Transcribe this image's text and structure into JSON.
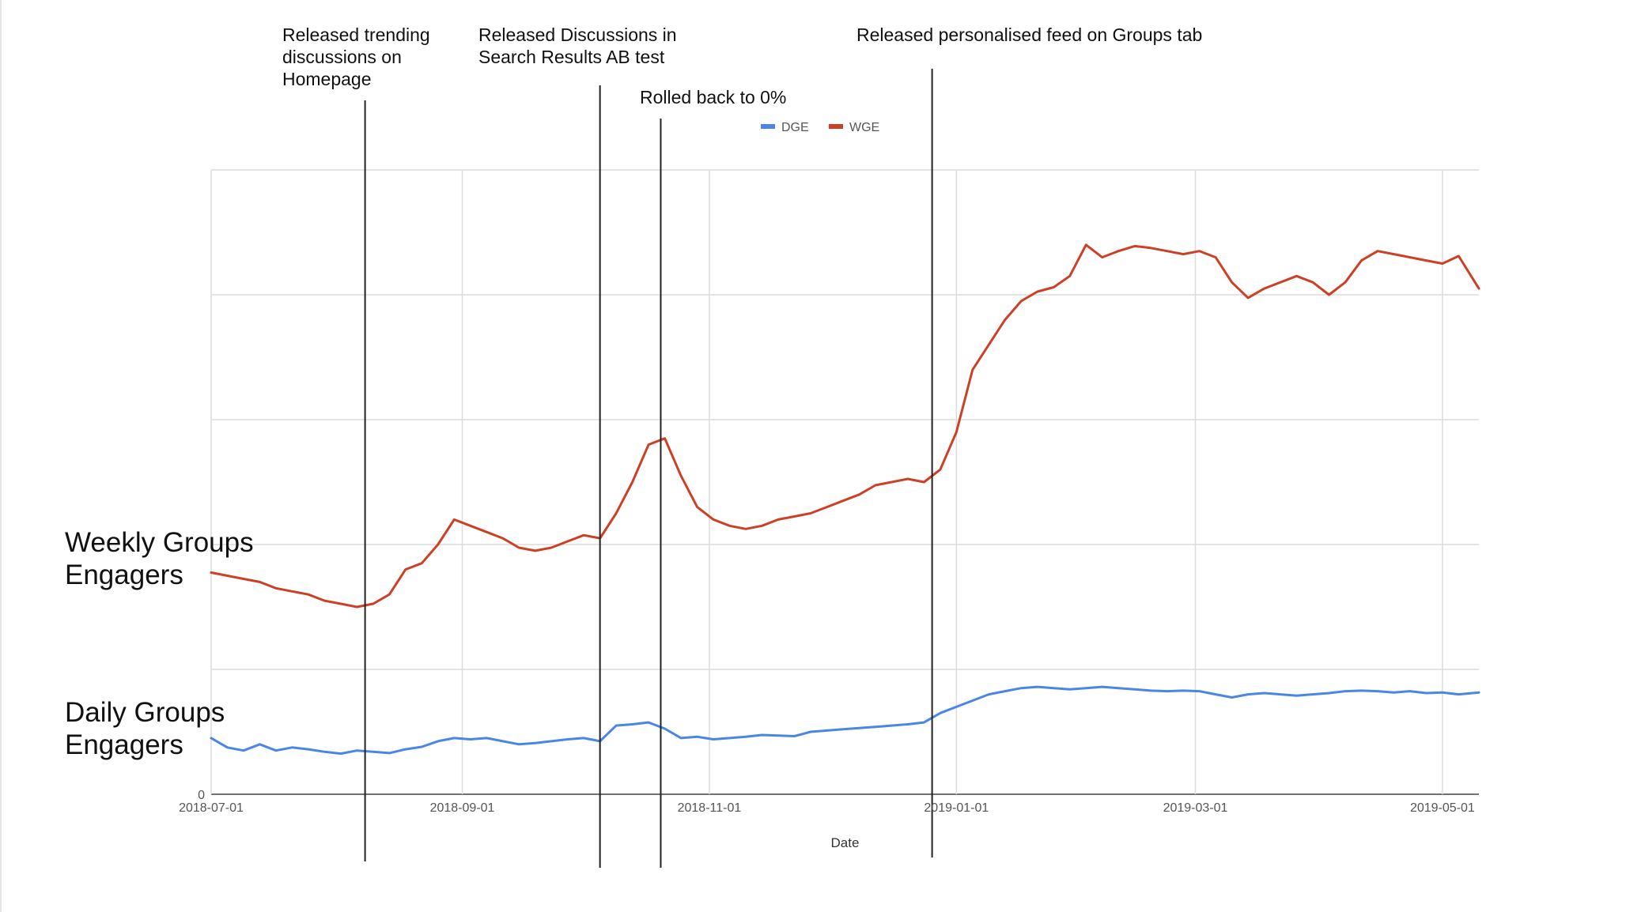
{
  "chart_data": {
    "type": "line",
    "title": "",
    "xlabel": "Date",
    "ylabel": "",
    "x_range": [
      "2018-07-01",
      "2019-05-10"
    ],
    "y_range": [
      0,
      1
    ],
    "y_tick_labels": [
      "0"
    ],
    "x_tick_labels": [
      "2018-07-01",
      "2018-09-01",
      "2018-11-01",
      "2019-01-01",
      "2019-03-01",
      "2019-05-01"
    ],
    "grid": true,
    "legend_position": "top-center",
    "series": [
      {
        "name": "DGE",
        "color": "#4a86e8",
        "points": [
          [
            "2018-07-01",
            0.09
          ],
          [
            "2018-07-05",
            0.075
          ],
          [
            "2018-07-09",
            0.07
          ],
          [
            "2018-07-13",
            0.08
          ],
          [
            "2018-07-17",
            0.07
          ],
          [
            "2018-07-21",
            0.075
          ],
          [
            "2018-07-25",
            0.072
          ],
          [
            "2018-07-29",
            0.068
          ],
          [
            "2018-08-02",
            0.065
          ],
          [
            "2018-08-06",
            0.07
          ],
          [
            "2018-08-10",
            0.068
          ],
          [
            "2018-08-14",
            0.066
          ],
          [
            "2018-08-18",
            0.072
          ],
          [
            "2018-08-22",
            0.076
          ],
          [
            "2018-08-26",
            0.085
          ],
          [
            "2018-08-30",
            0.09
          ],
          [
            "2018-09-03",
            0.088
          ],
          [
            "2018-09-07",
            0.09
          ],
          [
            "2018-09-11",
            0.085
          ],
          [
            "2018-09-15",
            0.08
          ],
          [
            "2018-09-19",
            0.082
          ],
          [
            "2018-09-23",
            0.085
          ],
          [
            "2018-09-27",
            0.088
          ],
          [
            "2018-10-01",
            0.09
          ],
          [
            "2018-10-05",
            0.085
          ],
          [
            "2018-10-09",
            0.11
          ],
          [
            "2018-10-13",
            0.112
          ],
          [
            "2018-10-17",
            0.115
          ],
          [
            "2018-10-21",
            0.105
          ],
          [
            "2018-10-25",
            0.09
          ],
          [
            "2018-10-29",
            0.092
          ],
          [
            "2018-11-02",
            0.088
          ],
          [
            "2018-11-06",
            0.09
          ],
          [
            "2018-11-10",
            0.092
          ],
          [
            "2018-11-14",
            0.095
          ],
          [
            "2018-11-18",
            0.094
          ],
          [
            "2018-11-22",
            0.093
          ],
          [
            "2018-11-26",
            0.1
          ],
          [
            "2018-11-30",
            0.102
          ],
          [
            "2018-12-04",
            0.104
          ],
          [
            "2018-12-08",
            0.106
          ],
          [
            "2018-12-12",
            0.108
          ],
          [
            "2018-12-16",
            0.11
          ],
          [
            "2018-12-20",
            0.112
          ],
          [
            "2018-12-24",
            0.115
          ],
          [
            "2018-12-28",
            0.13
          ],
          [
            "2019-01-01",
            0.14
          ],
          [
            "2019-01-05",
            0.15
          ],
          [
            "2019-01-09",
            0.16
          ],
          [
            "2019-01-13",
            0.165
          ],
          [
            "2019-01-17",
            0.17
          ],
          [
            "2019-01-21",
            0.172
          ],
          [
            "2019-01-25",
            0.17
          ],
          [
            "2019-01-29",
            0.168
          ],
          [
            "2019-02-02",
            0.17
          ],
          [
            "2019-02-06",
            0.172
          ],
          [
            "2019-02-10",
            0.17
          ],
          [
            "2019-02-14",
            0.168
          ],
          [
            "2019-02-18",
            0.166
          ],
          [
            "2019-02-22",
            0.165
          ],
          [
            "2019-02-26",
            0.166
          ],
          [
            "2019-03-02",
            0.165
          ],
          [
            "2019-03-06",
            0.16
          ],
          [
            "2019-03-10",
            0.155
          ],
          [
            "2019-03-14",
            0.16
          ],
          [
            "2019-03-18",
            0.162
          ],
          [
            "2019-03-22",
            0.16
          ],
          [
            "2019-03-26",
            0.158
          ],
          [
            "2019-03-30",
            0.16
          ],
          [
            "2019-04-03",
            0.162
          ],
          [
            "2019-04-07",
            0.165
          ],
          [
            "2019-04-11",
            0.166
          ],
          [
            "2019-04-15",
            0.165
          ],
          [
            "2019-04-19",
            0.163
          ],
          [
            "2019-04-23",
            0.165
          ],
          [
            "2019-04-27",
            0.162
          ],
          [
            "2019-05-01",
            0.163
          ],
          [
            "2019-05-05",
            0.16
          ],
          [
            "2019-05-10",
            0.163
          ]
        ]
      },
      {
        "name": "WGE",
        "color": "#cc4125",
        "points": [
          [
            "2018-07-01",
            0.355
          ],
          [
            "2018-07-05",
            0.35
          ],
          [
            "2018-07-09",
            0.345
          ],
          [
            "2018-07-13",
            0.34
          ],
          [
            "2018-07-17",
            0.33
          ],
          [
            "2018-07-21",
            0.325
          ],
          [
            "2018-07-25",
            0.32
          ],
          [
            "2018-07-29",
            0.31
          ],
          [
            "2018-08-02",
            0.305
          ],
          [
            "2018-08-06",
            0.3
          ],
          [
            "2018-08-10",
            0.305
          ],
          [
            "2018-08-14",
            0.32
          ],
          [
            "2018-08-18",
            0.36
          ],
          [
            "2018-08-22",
            0.37
          ],
          [
            "2018-08-26",
            0.4
          ],
          [
            "2018-08-30",
            0.44
          ],
          [
            "2018-09-03",
            0.43
          ],
          [
            "2018-09-07",
            0.42
          ],
          [
            "2018-09-11",
            0.41
          ],
          [
            "2018-09-15",
            0.395
          ],
          [
            "2018-09-19",
            0.39
          ],
          [
            "2018-09-23",
            0.395
          ],
          [
            "2018-09-27",
            0.405
          ],
          [
            "2018-10-01",
            0.415
          ],
          [
            "2018-10-05",
            0.41
          ],
          [
            "2018-10-09",
            0.45
          ],
          [
            "2018-10-13",
            0.5
          ],
          [
            "2018-10-17",
            0.56
          ],
          [
            "2018-10-21",
            0.57
          ],
          [
            "2018-10-25",
            0.51
          ],
          [
            "2018-10-29",
            0.46
          ],
          [
            "2018-11-02",
            0.44
          ],
          [
            "2018-11-06",
            0.43
          ],
          [
            "2018-11-10",
            0.425
          ],
          [
            "2018-11-14",
            0.43
          ],
          [
            "2018-11-18",
            0.44
          ],
          [
            "2018-11-22",
            0.445
          ],
          [
            "2018-11-26",
            0.45
          ],
          [
            "2018-11-30",
            0.46
          ],
          [
            "2018-12-04",
            0.47
          ],
          [
            "2018-12-08",
            0.48
          ],
          [
            "2018-12-12",
            0.495
          ],
          [
            "2018-12-16",
            0.5
          ],
          [
            "2018-12-20",
            0.505
          ],
          [
            "2018-12-24",
            0.5
          ],
          [
            "2018-12-28",
            0.52
          ],
          [
            "2019-01-01",
            0.58
          ],
          [
            "2019-01-05",
            0.68
          ],
          [
            "2019-01-09",
            0.72
          ],
          [
            "2019-01-13",
            0.76
          ],
          [
            "2019-01-17",
            0.79
          ],
          [
            "2019-01-21",
            0.805
          ],
          [
            "2019-01-25",
            0.812
          ],
          [
            "2019-01-29",
            0.83
          ],
          [
            "2019-02-02",
            0.88
          ],
          [
            "2019-02-06",
            0.86
          ],
          [
            "2019-02-10",
            0.87
          ],
          [
            "2019-02-14",
            0.878
          ],
          [
            "2019-02-18",
            0.875
          ],
          [
            "2019-02-22",
            0.87
          ],
          [
            "2019-02-26",
            0.865
          ],
          [
            "2019-03-02",
            0.87
          ],
          [
            "2019-03-06",
            0.86
          ],
          [
            "2019-03-10",
            0.82
          ],
          [
            "2019-03-14",
            0.795
          ],
          [
            "2019-03-18",
            0.81
          ],
          [
            "2019-03-22",
            0.82
          ],
          [
            "2019-03-26",
            0.83
          ],
          [
            "2019-03-30",
            0.82
          ],
          [
            "2019-04-03",
            0.8
          ],
          [
            "2019-04-07",
            0.82
          ],
          [
            "2019-04-11",
            0.855
          ],
          [
            "2019-04-15",
            0.87
          ],
          [
            "2019-04-19",
            0.865
          ],
          [
            "2019-04-23",
            0.86
          ],
          [
            "2019-04-27",
            0.855
          ],
          [
            "2019-05-01",
            0.85
          ],
          [
            "2019-05-05",
            0.862
          ],
          [
            "2019-05-10",
            0.81
          ]
        ]
      }
    ]
  },
  "annotations": [
    {
      "date": "2018-08-08",
      "lines": [
        "Released trending",
        "discussions on",
        "Homepage"
      ]
    },
    {
      "date": "2018-10-05",
      "lines": [
        "Released Discussions in",
        "Search Results AB test"
      ]
    },
    {
      "date": "2018-10-20",
      "lines": [
        "Rolled back to 0%"
      ]
    },
    {
      "date": "2018-12-26",
      "lines": [
        "Released personalised feed on Groups tab"
      ]
    }
  ],
  "side_labels": {
    "weekly": [
      "Weekly Groups",
      "Engagers"
    ],
    "daily": [
      "Daily Groups",
      "Engagers"
    ]
  }
}
